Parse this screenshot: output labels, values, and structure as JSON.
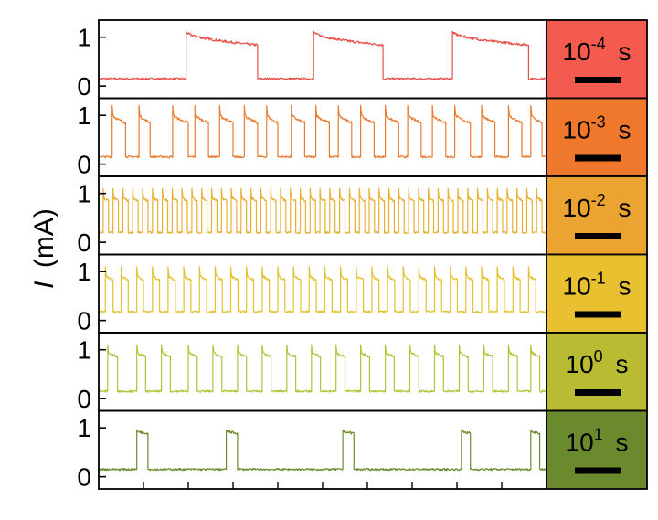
{
  "ylabel_italic": "I",
  "ylabel_unit": "(mA)",
  "chart_data": [
    {
      "type": "line",
      "ytick_labels": [
        "0",
        "1"
      ],
      "yticks": [
        0,
        1
      ],
      "ylim": [
        -0.25,
        1.35
      ],
      "timescale_label": {
        "base": "10",
        "exponent": "-4",
        "unit": "s"
      },
      "color": "#e9504a",
      "panel_color": "#f45a4e",
      "low": 0.15,
      "high": 1.12,
      "droop": 0.28,
      "spike": 0.0,
      "pulses": [
        [
          0.195,
          0.355
        ],
        [
          0.48,
          0.635
        ],
        [
          0.79,
          0.96
        ]
      ]
    },
    {
      "type": "line",
      "ytick_labels": [
        "0",
        "1"
      ],
      "yticks": [
        0,
        1
      ],
      "ylim": [
        -0.25,
        1.35
      ],
      "timescale_label": {
        "base": "10",
        "exponent": "-3",
        "unit": "s"
      },
      "color": "#e97b30",
      "panel_color": "#f0782c",
      "low": 0.15,
      "high": 1.05,
      "droop": 0.2,
      "spike": 0.15,
      "pulses": [
        [
          0.03,
          0.06
        ],
        [
          0.09,
          0.115
        ],
        [
          0.165,
          0.2
        ],
        [
          0.215,
          0.245
        ],
        [
          0.27,
          0.3
        ],
        [
          0.325,
          0.355
        ],
        [
          0.375,
          0.4
        ],
        [
          0.43,
          0.46
        ],
        [
          0.485,
          0.515
        ],
        [
          0.535,
          0.565
        ],
        [
          0.585,
          0.615
        ],
        [
          0.64,
          0.67
        ],
        [
          0.69,
          0.72
        ],
        [
          0.745,
          0.775
        ],
        [
          0.795,
          0.83
        ],
        [
          0.855,
          0.885
        ],
        [
          0.915,
          0.945
        ],
        [
          0.965,
          0.99
        ]
      ]
    },
    {
      "type": "line",
      "ytick_labels": [
        "0",
        "1"
      ],
      "yticks": [
        0,
        1
      ],
      "ylim": [
        -0.25,
        1.35
      ],
      "timescale_label": {
        "base": "10",
        "exponent": "-2",
        "unit": "s"
      },
      "color": "#e8b034",
      "panel_color": "#eba432",
      "low": 0.2,
      "high": 0.95,
      "droop": 0.1,
      "spike": 0.15,
      "pulses": [
        [
          0.01,
          0.022
        ],
        [
          0.032,
          0.044
        ],
        [
          0.054,
          0.066
        ],
        [
          0.076,
          0.088
        ],
        [
          0.098,
          0.11
        ],
        [
          0.12,
          0.132
        ],
        [
          0.142,
          0.154
        ],
        [
          0.164,
          0.176
        ],
        [
          0.186,
          0.198
        ],
        [
          0.208,
          0.22
        ],
        [
          0.23,
          0.242
        ],
        [
          0.252,
          0.264
        ],
        [
          0.274,
          0.286
        ],
        [
          0.296,
          0.308
        ],
        [
          0.318,
          0.33
        ],
        [
          0.34,
          0.352
        ],
        [
          0.362,
          0.374
        ],
        [
          0.384,
          0.396
        ],
        [
          0.406,
          0.418
        ],
        [
          0.428,
          0.44
        ],
        [
          0.45,
          0.462
        ],
        [
          0.472,
          0.484
        ],
        [
          0.494,
          0.506
        ],
        [
          0.516,
          0.528
        ],
        [
          0.538,
          0.55
        ],
        [
          0.56,
          0.572
        ],
        [
          0.582,
          0.594
        ],
        [
          0.604,
          0.616
        ],
        [
          0.626,
          0.638
        ],
        [
          0.648,
          0.66
        ],
        [
          0.67,
          0.682
        ],
        [
          0.692,
          0.704
        ],
        [
          0.714,
          0.726
        ],
        [
          0.736,
          0.748
        ],
        [
          0.758,
          0.77
        ],
        [
          0.78,
          0.792
        ],
        [
          0.802,
          0.814
        ],
        [
          0.824,
          0.836
        ],
        [
          0.846,
          0.858
        ],
        [
          0.868,
          0.88
        ],
        [
          0.89,
          0.902
        ],
        [
          0.912,
          0.924
        ],
        [
          0.934,
          0.946
        ],
        [
          0.956,
          0.968
        ],
        [
          0.978,
          0.99
        ]
      ]
    },
    {
      "type": "line",
      "ytick_labels": [
        "0",
        "1"
      ],
      "yticks": [
        0,
        1
      ],
      "ylim": [
        -0.25,
        1.35
      ],
      "timescale_label": {
        "base": "10",
        "exponent": "-1",
        "unit": "s"
      },
      "color": "#e4c22e",
      "panel_color": "#e9c030",
      "low": 0.18,
      "high": 0.95,
      "droop": 0.12,
      "spike": 0.15,
      "pulses": [
        [
          0.015,
          0.032
        ],
        [
          0.05,
          0.066
        ],
        [
          0.085,
          0.1
        ],
        [
          0.12,
          0.136
        ],
        [
          0.155,
          0.171
        ],
        [
          0.19,
          0.206
        ],
        [
          0.225,
          0.241
        ],
        [
          0.26,
          0.276
        ],
        [
          0.295,
          0.311
        ],
        [
          0.33,
          0.346
        ],
        [
          0.365,
          0.381
        ],
        [
          0.4,
          0.416
        ],
        [
          0.435,
          0.451
        ],
        [
          0.47,
          0.486
        ],
        [
          0.505,
          0.521
        ],
        [
          0.54,
          0.556
        ],
        [
          0.575,
          0.591
        ],
        [
          0.61,
          0.626
        ],
        [
          0.645,
          0.661
        ],
        [
          0.68,
          0.696
        ],
        [
          0.715,
          0.731
        ],
        [
          0.75,
          0.766
        ],
        [
          0.785,
          0.801
        ],
        [
          0.82,
          0.836
        ],
        [
          0.855,
          0.871
        ],
        [
          0.89,
          0.906
        ],
        [
          0.925,
          0.941
        ],
        [
          0.96,
          0.976
        ]
      ]
    },
    {
      "type": "line",
      "ytick_labels": [
        "0",
        "1"
      ],
      "yticks": [
        0,
        1
      ],
      "ylim": [
        -0.25,
        1.35
      ],
      "timescale_label": {
        "base": "10",
        "exponent": "0",
        "unit": "s"
      },
      "color": "#b5c23a",
      "panel_color": "#b9bc32",
      "low": 0.15,
      "high": 0.98,
      "droop": 0.12,
      "spike": 0.12,
      "pulses": [
        [
          0.02,
          0.042
        ],
        [
          0.085,
          0.105
        ],
        [
          0.14,
          0.16
        ],
        [
          0.2,
          0.22
        ],
        [
          0.255,
          0.275
        ],
        [
          0.31,
          0.33
        ],
        [
          0.365,
          0.385
        ],
        [
          0.42,
          0.44
        ],
        [
          0.475,
          0.495
        ],
        [
          0.53,
          0.55
        ],
        [
          0.585,
          0.605
        ],
        [
          0.64,
          0.66
        ],
        [
          0.695,
          0.715
        ],
        [
          0.75,
          0.77
        ],
        [
          0.805,
          0.825
        ],
        [
          0.86,
          0.88
        ],
        [
          0.915,
          0.935
        ],
        [
          0.965,
          0.985
        ]
      ]
    },
    {
      "type": "line",
      "ytick_labels": [
        "0",
        "1"
      ],
      "yticks": [
        0,
        1
      ],
      "ylim": [
        -0.25,
        1.35
      ],
      "timescale_label": {
        "base": "10",
        "exponent": "1",
        "unit": "s"
      },
      "color": "#6a8c2c",
      "panel_color": "#6b8a2e",
      "low": 0.15,
      "high": 0.95,
      "droop": 0.06,
      "spike": 0.0,
      "pulses": [
        [
          0.085,
          0.11
        ],
        [
          0.285,
          0.31
        ],
        [
          0.545,
          0.57
        ],
        [
          0.81,
          0.83
        ],
        [
          0.965,
          0.985
        ]
      ]
    }
  ]
}
